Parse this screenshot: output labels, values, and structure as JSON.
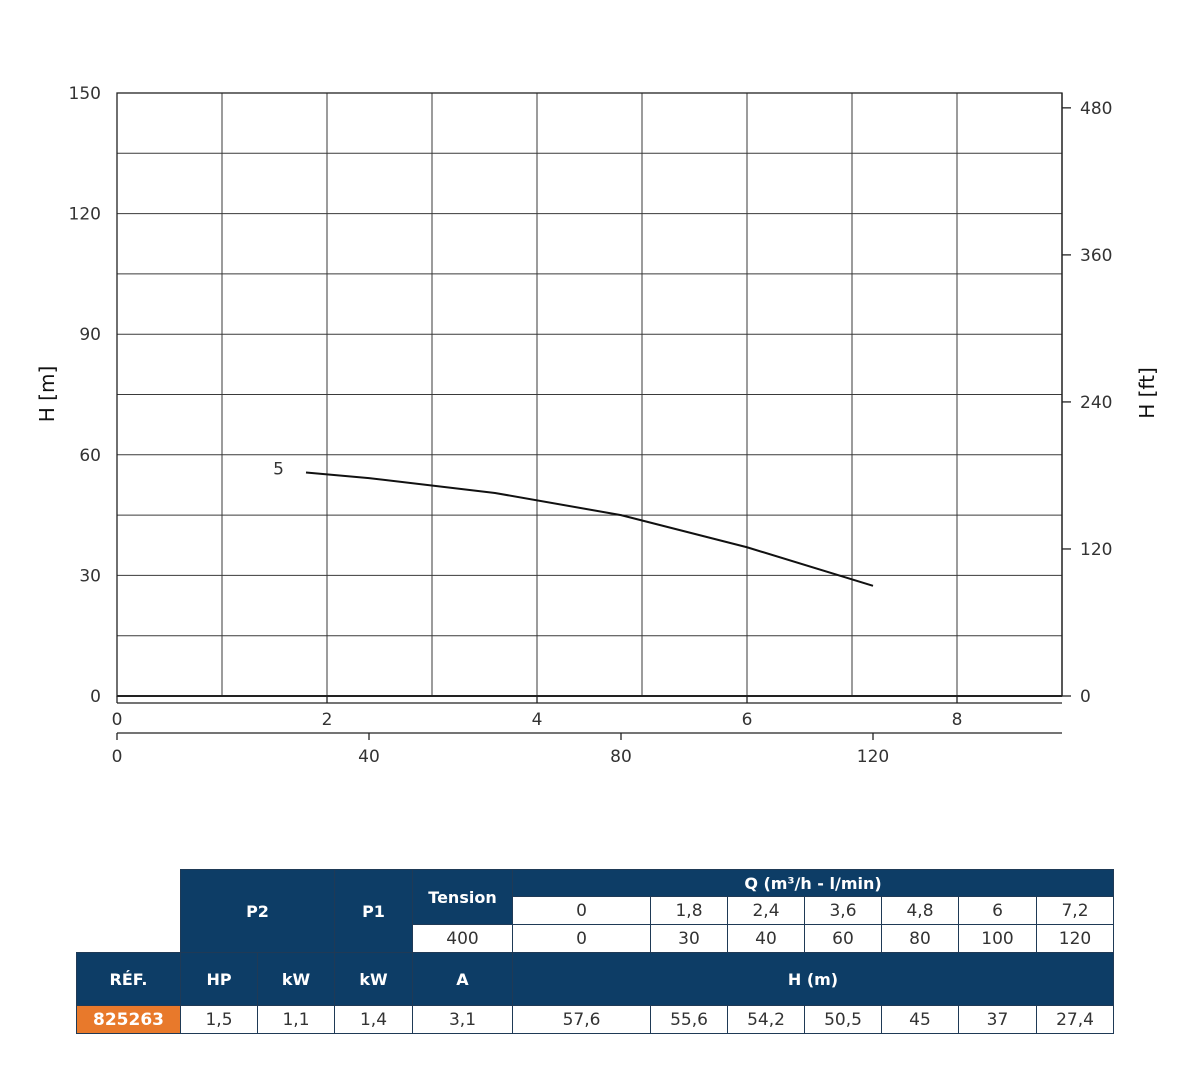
{
  "chart_data": {
    "type": "line",
    "ylabel": "H [m]",
    "y2label": "H [ft]",
    "yticks": [
      0,
      30,
      60,
      90,
      120,
      150
    ],
    "y2ticks": [
      0,
      120,
      240,
      360,
      480
    ],
    "xticks_m3h": [
      0,
      2,
      4,
      6,
      8
    ],
    "xticks_lmin": [
      0,
      40,
      80,
      120
    ],
    "xlim_m3h": [
      0,
      9
    ],
    "ylim": [
      0,
      150
    ],
    "grid": true,
    "series": [
      {
        "name": "5",
        "x": [
          1.8,
          2.4,
          3.6,
          4.8,
          6,
          7.2
        ],
        "y": [
          55.6,
          54.2,
          50.5,
          45,
          37,
          27.4
        ]
      }
    ]
  },
  "table": {
    "headers": {
      "p2": "P2",
      "p1": "P1",
      "tension": "Tension",
      "q": "Q (m³/h - l/min)",
      "ref": "RÉF.",
      "hp": "HP",
      "kw": "kW",
      "kw2": "kW",
      "a": "A",
      "h": "H (m)"
    },
    "q_m3h": [
      "0",
      "1,8",
      "2,4",
      "3,6",
      "4,8",
      "6",
      "7,2"
    ],
    "tension_value": "400",
    "q_lmin": [
      "0",
      "30",
      "40",
      "60",
      "80",
      "100",
      "120"
    ],
    "row": {
      "ref": "825263",
      "hp": "1,5",
      "kw": "1,1",
      "kw_p1": "1,4",
      "a": "3,1",
      "h": [
        "57,6",
        "55,6",
        "54,2",
        "50,5",
        "45",
        "37",
        "27,4"
      ]
    }
  }
}
